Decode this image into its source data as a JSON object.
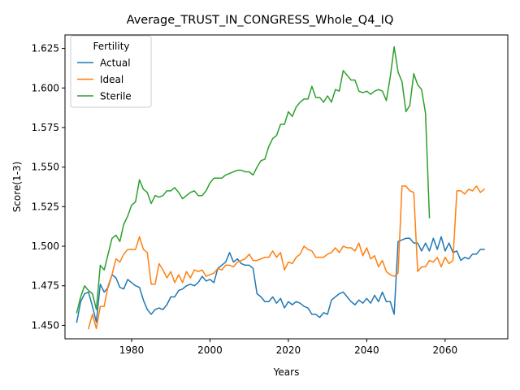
{
  "chart_data": {
    "type": "line",
    "title": "Average_TRUST_IN_CONGRESS_Whole_Q4_IQ",
    "xlabel": "Years",
    "ylabel": "Score(1-3)",
    "xlim": [
      1963,
      2076
    ],
    "ylim": [
      1.4415,
      1.6335
    ],
    "xticks": [
      1980,
      2000,
      2020,
      2040,
      2060
    ],
    "yticks": [
      1.45,
      1.475,
      1.5,
      1.525,
      1.55,
      1.575,
      1.6,
      1.625
    ],
    "ytick_labels": [
      "1.450",
      "1.475",
      "1.500",
      "1.525",
      "1.550",
      "1.575",
      "1.600",
      "1.625"
    ],
    "grid": false,
    "legend": {
      "title": "Fertility",
      "position": "top-left"
    },
    "series": [
      {
        "name": "Actual",
        "color": "#1f77b4",
        "x": [
          1966,
          1967,
          1968,
          1969,
          1970,
          1971,
          1972,
          1973,
          1974,
          1975,
          1976,
          1977,
          1978,
          1979,
          1980,
          1981,
          1982,
          1983,
          1984,
          1985,
          1986,
          1987,
          1988,
          1989,
          1990,
          1991,
          1992,
          1993,
          1994,
          1995,
          1996,
          1997,
          1998,
          1999,
          2000,
          2001,
          2002,
          2003,
          2004,
          2005,
          2006,
          2007,
          2008,
          2009,
          2010,
          2011,
          2012,
          2013,
          2014,
          2015,
          2016,
          2017,
          2018,
          2019,
          2020,
          2021,
          2022,
          2023,
          2024,
          2025,
          2026,
          2027,
          2028,
          2029,
          2030,
          2031,
          2032,
          2033,
          2034,
          2035,
          2036,
          2037,
          2038,
          2039,
          2040,
          2041,
          2042,
          2043,
          2044,
          2045,
          2046,
          2047,
          2048,
          2049,
          2050,
          2051,
          2052,
          2053,
          2054,
          2055,
          2056,
          2057,
          2058,
          2059,
          2060,
          2061,
          2062,
          2063,
          2064,
          2065,
          2066,
          2067,
          2068,
          2069,
          2070
        ],
        "y": [
          1.452,
          1.465,
          1.47,
          1.471,
          1.462,
          1.452,
          1.476,
          1.471,
          1.474,
          1.482,
          1.48,
          1.474,
          1.473,
          1.479,
          1.477,
          1.475,
          1.474,
          1.466,
          1.46,
          1.457,
          1.46,
          1.461,
          1.46,
          1.463,
          1.468,
          1.468,
          1.472,
          1.473,
          1.475,
          1.476,
          1.475,
          1.477,
          1.481,
          1.478,
          1.479,
          1.477,
          1.486,
          1.488,
          1.49,
          1.496,
          1.49,
          1.492,
          1.489,
          1.488,
          1.488,
          1.486,
          1.47,
          1.468,
          1.465,
          1.465,
          1.468,
          1.464,
          1.467,
          1.461,
          1.465,
          1.463,
          1.465,
          1.464,
          1.462,
          1.461,
          1.457,
          1.457,
          1.455,
          1.458,
          1.457,
          1.466,
          1.468,
          1.47,
          1.471,
          1.468,
          1.465,
          1.463,
          1.466,
          1.464,
          1.467,
          1.464,
          1.469,
          1.465,
          1.471,
          1.465,
          1.465,
          1.457,
          1.503,
          1.504,
          1.505,
          1.505,
          1.502,
          1.502,
          1.497,
          1.502,
          1.497,
          1.505,
          1.498,
          1.506,
          1.497,
          1.502,
          1.496,
          1.497,
          1.491,
          1.493,
          1.492,
          1.495,
          1.495,
          1.498,
          1.498
        ]
      },
      {
        "name": "Ideal",
        "color": "#ff7f0e",
        "x": [
          1969,
          1970,
          1971,
          1972,
          1973,
          1974,
          1975,
          1976,
          1977,
          1978,
          1979,
          1980,
          1981,
          1982,
          1983,
          1984,
          1985,
          1986,
          1987,
          1988,
          1989,
          1990,
          1991,
          1992,
          1993,
          1994,
          1995,
          1996,
          1997,
          1998,
          1999,
          2000,
          2001,
          2002,
          2003,
          2004,
          2005,
          2006,
          2007,
          2008,
          2009,
          2010,
          2011,
          2012,
          2013,
          2014,
          2015,
          2016,
          2017,
          2018,
          2019,
          2020,
          2021,
          2022,
          2023,
          2024,
          2025,
          2026,
          2027,
          2028,
          2029,
          2030,
          2031,
          2032,
          2033,
          2034,
          2035,
          2036,
          2037,
          2038,
          2039,
          2040,
          2041,
          2042,
          2043,
          2044,
          2045,
          2046,
          2047,
          2048,
          2049,
          2050,
          2051,
          2052,
          2053,
          2054,
          2055,
          2056,
          2057,
          2058,
          2059,
          2060,
          2061,
          2062,
          2063,
          2064,
          2065,
          2066,
          2067,
          2068,
          2069,
          2070
        ],
        "y": [
          1.448,
          1.457,
          1.448,
          1.462,
          1.462,
          1.475,
          1.482,
          1.492,
          1.49,
          1.495,
          1.498,
          1.498,
          1.498,
          1.506,
          1.498,
          1.496,
          1.476,
          1.476,
          1.489,
          1.485,
          1.48,
          1.484,
          1.477,
          1.482,
          1.477,
          1.484,
          1.48,
          1.485,
          1.484,
          1.485,
          1.481,
          1.482,
          1.483,
          1.486,
          1.485,
          1.488,
          1.488,
          1.487,
          1.49,
          1.491,
          1.492,
          1.495,
          1.491,
          1.491,
          1.492,
          1.493,
          1.493,
          1.497,
          1.493,
          1.496,
          1.485,
          1.49,
          1.489,
          1.493,
          1.495,
          1.5,
          1.498,
          1.497,
          1.493,
          1.493,
          1.493,
          1.495,
          1.496,
          1.499,
          1.496,
          1.5,
          1.499,
          1.499,
          1.497,
          1.502,
          1.494,
          1.499,
          1.492,
          1.494,
          1.487,
          1.491,
          1.484,
          1.482,
          1.481,
          1.483,
          1.538,
          1.538,
          1.535,
          1.534,
          1.484,
          1.487,
          1.487,
          1.491,
          1.49,
          1.493,
          1.487,
          1.493,
          1.489,
          1.491,
          1.535,
          1.535,
          1.533,
          1.536,
          1.535,
          1.538,
          1.534,
          1.536
        ]
      },
      {
        "name": "Sterile",
        "color": "#2ca02c",
        "x": [
          1966,
          1967,
          1968,
          1969,
          1970,
          1971,
          1972,
          1973,
          1974,
          1975,
          1976,
          1977,
          1978,
          1979,
          1980,
          1981,
          1982,
          1983,
          1984,
          1985,
          1986,
          1987,
          1988,
          1989,
          1990,
          1991,
          1992,
          1993,
          1994,
          1995,
          1996,
          1997,
          1998,
          1999,
          2000,
          2001,
          2002,
          2003,
          2004,
          2005,
          2006,
          2007,
          2008,
          2009,
          2010,
          2011,
          2012,
          2013,
          2014,
          2015,
          2016,
          2017,
          2018,
          2019,
          2020,
          2021,
          2022,
          2023,
          2024,
          2025,
          2026,
          2027,
          2028,
          2029,
          2030,
          2031,
          2032,
          2033,
          2034,
          2035,
          2036,
          2037,
          2038,
          2039,
          2040,
          2041,
          2042,
          2043,
          2044,
          2045,
          2046,
          2047,
          2048,
          2049,
          2050,
          2051,
          2052,
          2053,
          2054,
          2055,
          2056
        ],
        "y": [
          1.458,
          1.468,
          1.475,
          1.472,
          1.47,
          1.46,
          1.488,
          1.485,
          1.495,
          1.505,
          1.507,
          1.503,
          1.514,
          1.519,
          1.526,
          1.528,
          1.542,
          1.536,
          1.534,
          1.527,
          1.532,
          1.531,
          1.532,
          1.535,
          1.535,
          1.537,
          1.534,
          1.53,
          1.532,
          1.534,
          1.535,
          1.532,
          1.532,
          1.535,
          1.54,
          1.543,
          1.543,
          1.543,
          1.545,
          1.546,
          1.547,
          1.548,
          1.548,
          1.547,
          1.547,
          1.545,
          1.55,
          1.554,
          1.555,
          1.563,
          1.568,
          1.57,
          1.577,
          1.577,
          1.585,
          1.582,
          1.588,
          1.591,
          1.593,
          1.593,
          1.601,
          1.594,
          1.594,
          1.591,
          1.595,
          1.591,
          1.599,
          1.598,
          1.611,
          1.608,
          1.605,
          1.605,
          1.598,
          1.597,
          1.598,
          1.596,
          1.598,
          1.599,
          1.598,
          1.592,
          1.607,
          1.626,
          1.61,
          1.604,
          1.585,
          1.589,
          1.609,
          1.602,
          1.599,
          1.584,
          1.518
        ]
      }
    ]
  }
}
